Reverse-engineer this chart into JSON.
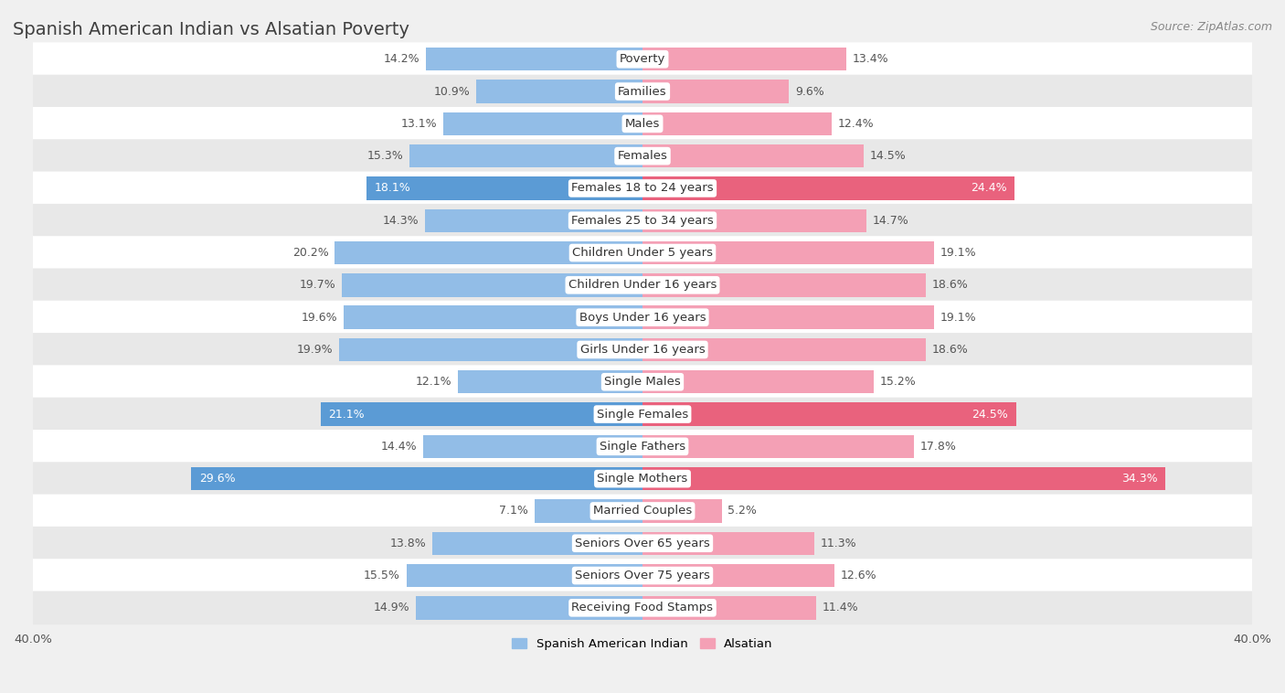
{
  "title": "Spanish American Indian vs Alsatian Poverty",
  "source": "Source: ZipAtlas.com",
  "categories": [
    "Poverty",
    "Families",
    "Males",
    "Females",
    "Females 18 to 24 years",
    "Females 25 to 34 years",
    "Children Under 5 years",
    "Children Under 16 years",
    "Boys Under 16 years",
    "Girls Under 16 years",
    "Single Males",
    "Single Females",
    "Single Fathers",
    "Single Mothers",
    "Married Couples",
    "Seniors Over 65 years",
    "Seniors Over 75 years",
    "Receiving Food Stamps"
  ],
  "left_values": [
    14.2,
    10.9,
    13.1,
    15.3,
    18.1,
    14.3,
    20.2,
    19.7,
    19.6,
    19.9,
    12.1,
    21.1,
    14.4,
    29.6,
    7.1,
    13.8,
    15.5,
    14.9
  ],
  "right_values": [
    13.4,
    9.6,
    12.4,
    14.5,
    24.4,
    14.7,
    19.1,
    18.6,
    19.1,
    18.6,
    15.2,
    24.5,
    17.8,
    34.3,
    5.2,
    11.3,
    12.6,
    11.4
  ],
  "left_color": "#92bde7",
  "right_color": "#f4a0b5",
  "left_highlight_color": "#5b9bd5",
  "right_highlight_color": "#e9627d",
  "highlight_rows": [
    4,
    11,
    13
  ],
  "axis_limit": 40.0,
  "left_label": "Spanish American Indian",
  "right_label": "Alsatian",
  "background_color": "#f0f0f0",
  "row_bg_white": "#ffffff",
  "row_bg_gray": "#e8e8e8",
  "bar_height": 0.72,
  "title_fontsize": 14,
  "label_fontsize": 9.5,
  "value_fontsize": 9,
  "source_fontsize": 9
}
